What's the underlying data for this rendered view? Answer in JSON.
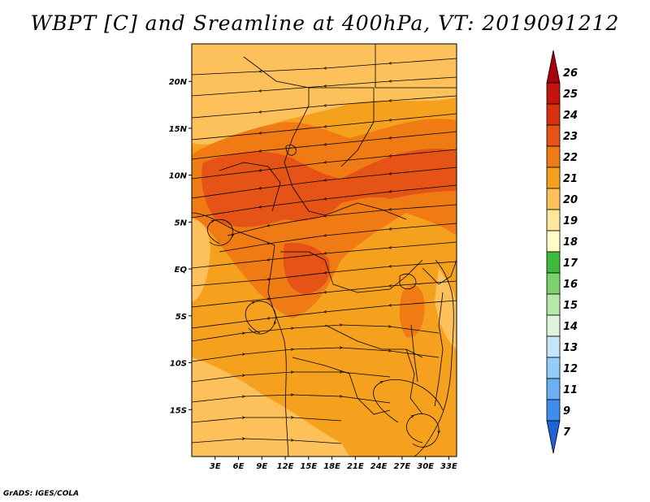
{
  "title": "WBPT [C] and Sreamline at 400hPa, VT: 2019091212",
  "credit": "GrADS: IGES/COLA",
  "map": {
    "lat_range": [
      -20,
      24
    ],
    "lon_range": [
      0,
      34
    ],
    "lat_ticks": [
      "20N",
      "15N",
      "10N",
      "5N",
      "EQ",
      "5S",
      "10S",
      "15S"
    ],
    "lon_ticks": [
      "3E",
      "6E",
      "9E",
      "12E",
      "15E",
      "18E",
      "21E",
      "24E",
      "27E",
      "30E",
      "33E"
    ],
    "field_colors": {
      "c20": "#fdc15c",
      "c21": "#f6a11e",
      "c22": "#f07b14",
      "c23": "#e55317"
    }
  },
  "colorbar": {
    "labels": [
      "26",
      "25",
      "24",
      "23",
      "22",
      "21",
      "20",
      "19",
      "18",
      "17",
      "16",
      "15",
      "14",
      "13",
      "12",
      "11",
      "9",
      "7"
    ],
    "colors": [
      "#a8000c",
      "#c4140c",
      "#d9310e",
      "#e65315",
      "#f07b14",
      "#f6a11e",
      "#fdc15c",
      "#fde79a",
      "#fefcc6",
      "#3ebb3c",
      "#7cd36e",
      "#b6e8aa",
      "#def4d8",
      "#c4e6fb",
      "#94cdf8",
      "#6bb0f3",
      "#3e8ef0",
      "#1e62d9"
    ]
  }
}
